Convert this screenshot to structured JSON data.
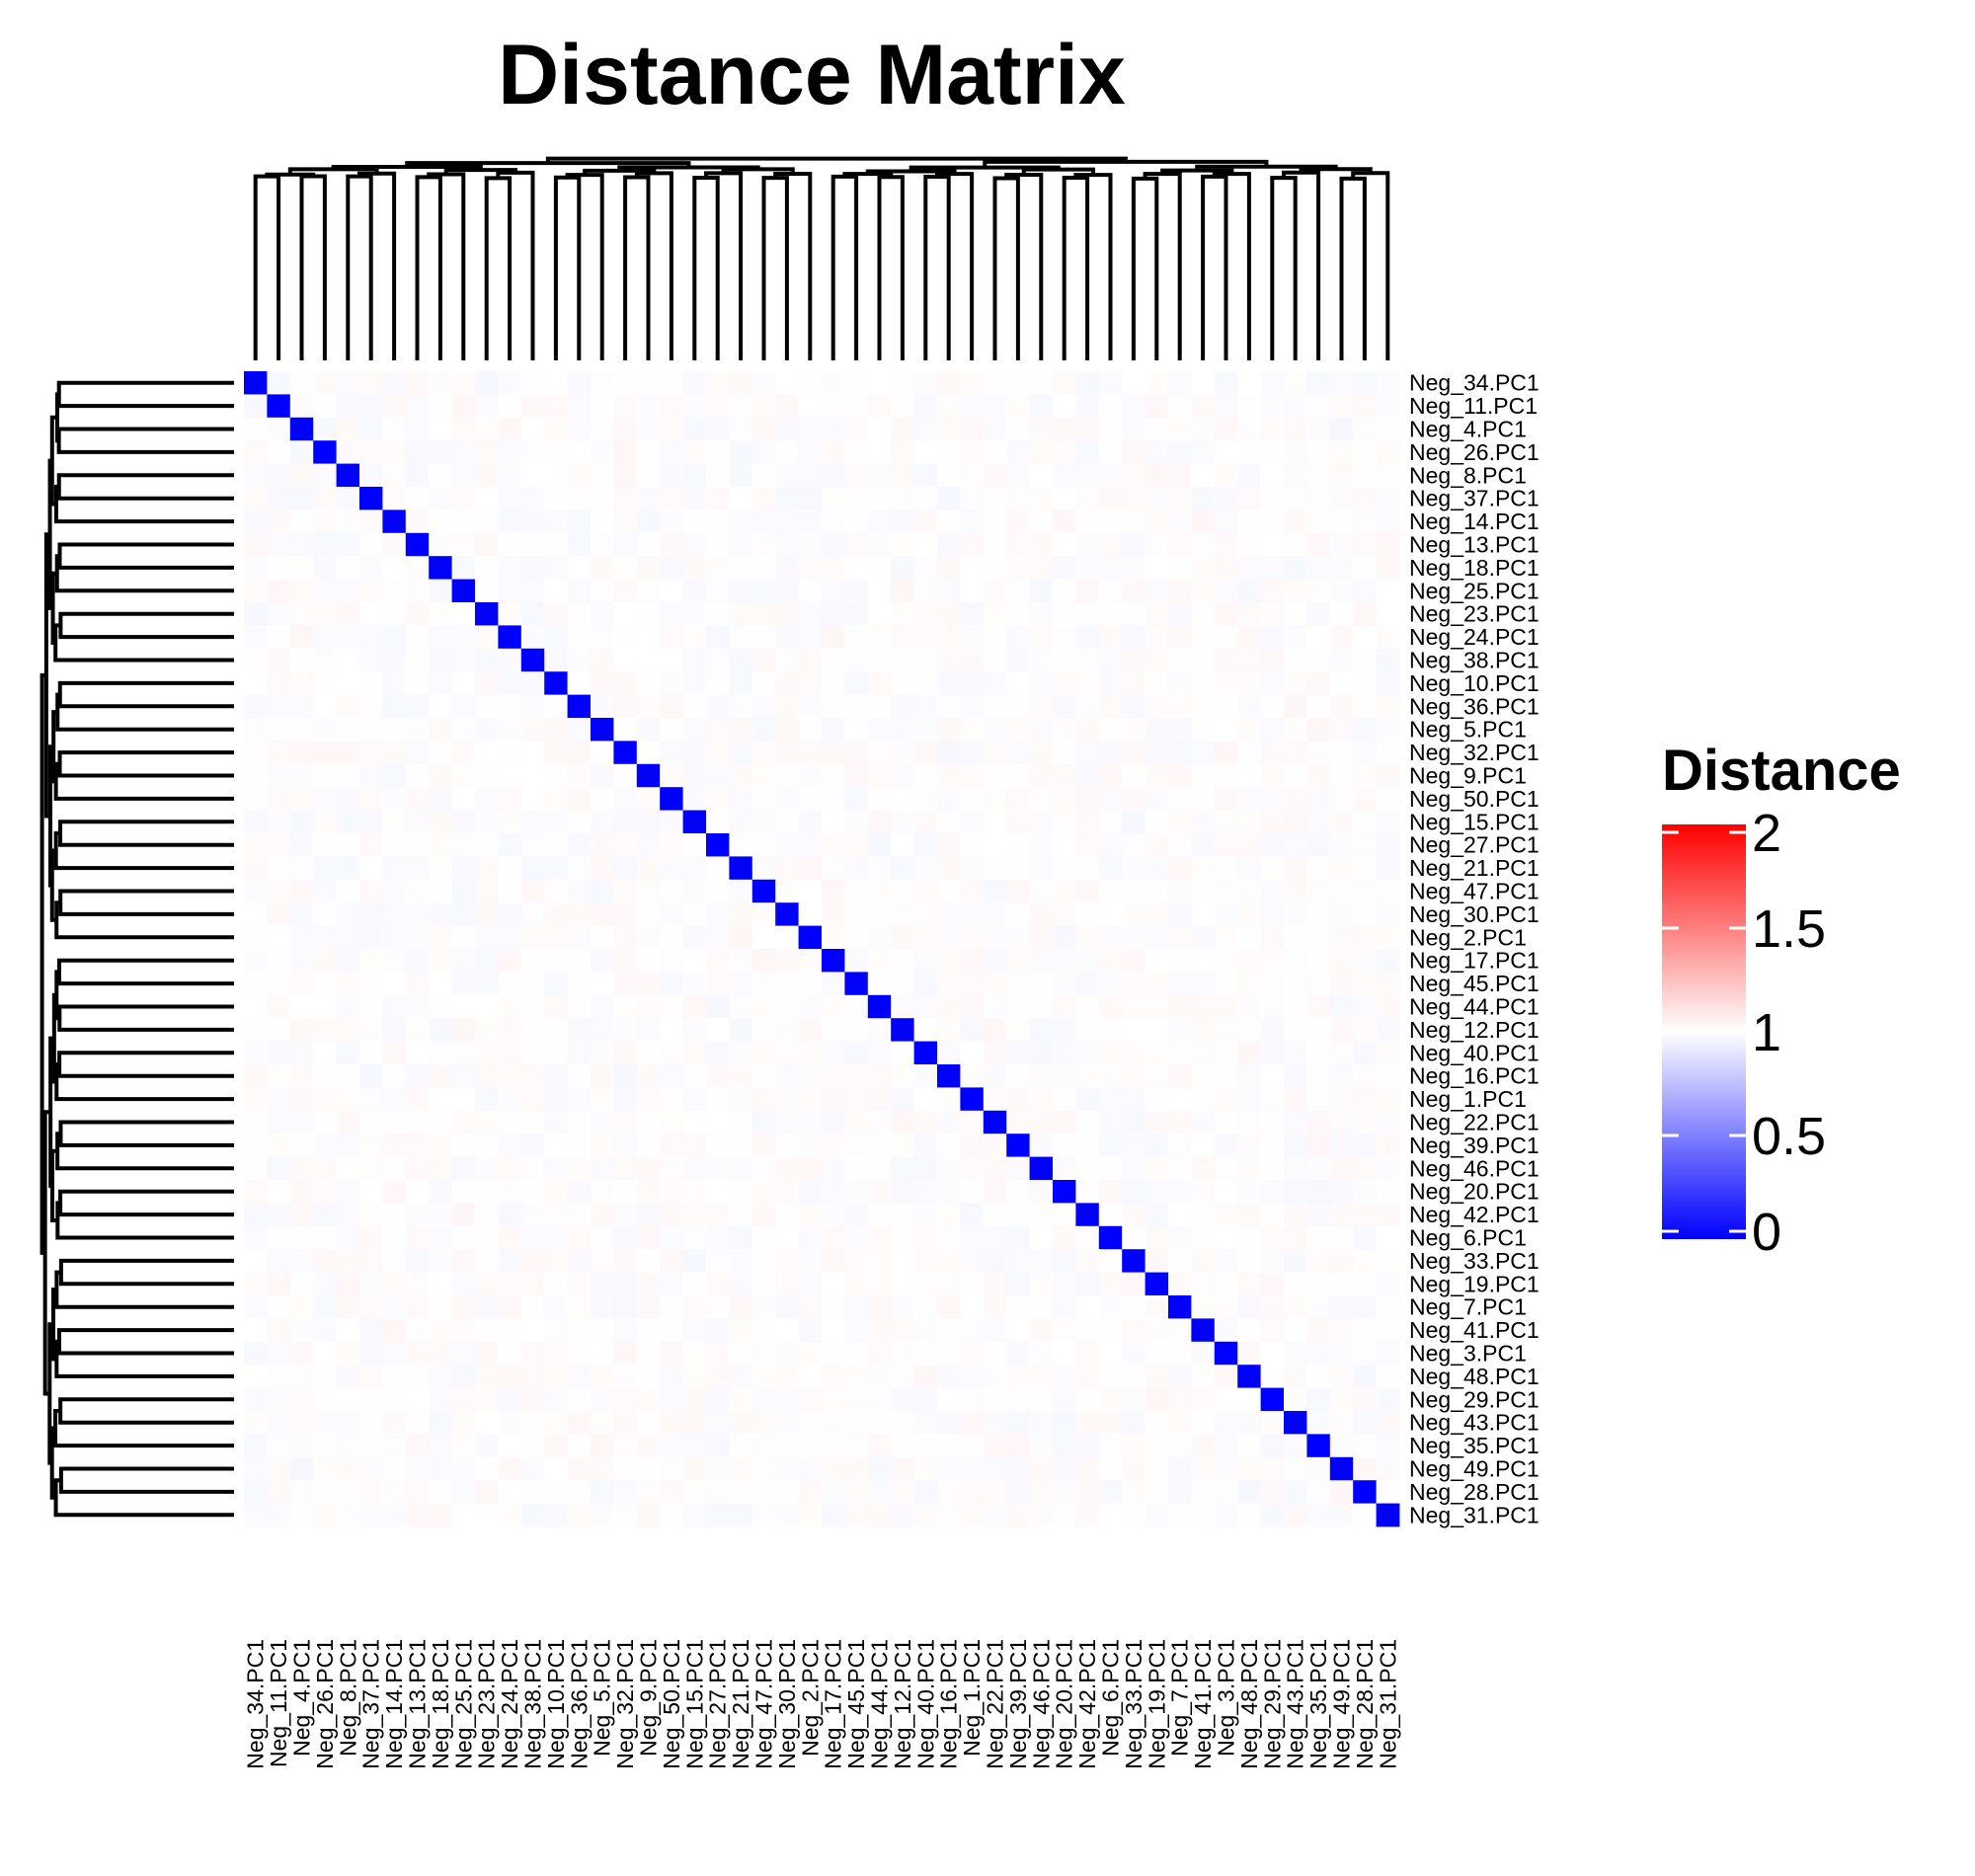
{
  "chart_data": {
    "type": "heatmap",
    "title": "Distance Matrix",
    "labels": [
      "Neg_34.PC1",
      "Neg_11.PC1",
      "Neg_4.PC1",
      "Neg_26.PC1",
      "Neg_8.PC1",
      "Neg_37.PC1",
      "Neg_14.PC1",
      "Neg_13.PC1",
      "Neg_18.PC1",
      "Neg_25.PC1",
      "Neg_23.PC1",
      "Neg_24.PC1",
      "Neg_38.PC1",
      "Neg_10.PC1",
      "Neg_36.PC1",
      "Neg_5.PC1",
      "Neg_32.PC1",
      "Neg_9.PC1",
      "Neg_50.PC1",
      "Neg_15.PC1",
      "Neg_27.PC1",
      "Neg_21.PC1",
      "Neg_47.PC1",
      "Neg_30.PC1",
      "Neg_2.PC1",
      "Neg_17.PC1",
      "Neg_45.PC1",
      "Neg_44.PC1",
      "Neg_12.PC1",
      "Neg_40.PC1",
      "Neg_16.PC1",
      "Neg_1.PC1",
      "Neg_22.PC1",
      "Neg_39.PC1",
      "Neg_46.PC1",
      "Neg_20.PC1",
      "Neg_42.PC1",
      "Neg_6.PC1",
      "Neg_33.PC1",
      "Neg_19.PC1",
      "Neg_7.PC1",
      "Neg_41.PC1",
      "Neg_3.PC1",
      "Neg_48.PC1",
      "Neg_29.PC1",
      "Neg_43.PC1",
      "Neg_35.PC1",
      "Neg_49.PC1",
      "Neg_28.PC1",
      "Neg_31.PC1"
    ],
    "diagonal_value": 0,
    "off_diagonal_value": 1,
    "off_diagonal_variation": "approximately 0.95 to 1.05, appearing as faint pale tints",
    "value_range": [
      0,
      2
    ],
    "dendrograms": [
      "top (columns)",
      "left (rows)"
    ],
    "legend": {
      "title": "Distance",
      "ticks": [
        "2",
        "1.5",
        "1",
        "0.5",
        "0"
      ],
      "colors": {
        "low": "#0000ff",
        "mid": "#ffffff",
        "high": "#ff0000"
      },
      "placement": "right"
    }
  }
}
